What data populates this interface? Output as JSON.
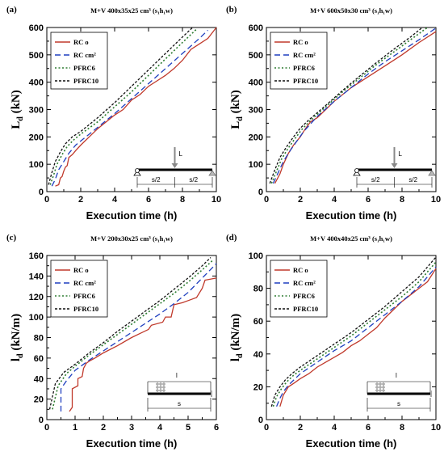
{
  "chart_data": [
    {
      "id": "a",
      "type": "line",
      "panel_label": "(a)",
      "title": "M+V 400x35x25 cm³ (s₁h₁w)",
      "xlabel": "Execution time (h)",
      "ylabel_main": "L",
      "ylabel_sub": "d",
      "ylabel_unit": " (kN)",
      "xlim": [
        0,
        10
      ],
      "ylim": [
        0,
        600
      ],
      "xticks": [
        0,
        2,
        4,
        6,
        8,
        10
      ],
      "yticks": [
        0,
        100,
        200,
        300,
        400,
        500,
        600
      ],
      "legend_position": "top-left",
      "schematic": {
        "load": "L",
        "left_span": "s/2",
        "right_span": "s/2"
      },
      "series": [
        {
          "name": "RC o",
          "color": "#c0392b",
          "dash": "solid",
          "x": [
            0.5,
            0.7,
            0.8,
            0.9,
            1.0,
            1.1,
            1.2,
            1.3,
            1.5,
            1.7,
            2.0,
            2.5,
            3.0,
            3.5,
            4.0,
            4.5,
            5.0,
            5.5,
            6.0,
            6.5,
            7.0,
            7.5,
            8.0,
            8.5,
            9.0,
            9.5,
            10.0
          ],
          "y": [
            20,
            25,
            50,
            55,
            75,
            90,
            95,
            125,
            135,
            150,
            170,
            200,
            230,
            255,
            280,
            300,
            335,
            355,
            385,
            405,
            425,
            450,
            480,
            520,
            540,
            560,
            600
          ]
        },
        {
          "name": "RC cm²",
          "color": "#1f3fbf",
          "dash": "dash",
          "x": [
            0.3,
            0.5,
            0.7,
            1.0,
            1.3,
            1.7,
            2.2,
            3.0,
            4.0,
            5.0,
            6.0,
            7.0,
            8.0,
            9.0,
            9.5
          ],
          "y": [
            20,
            45,
            80,
            110,
            140,
            170,
            195,
            235,
            285,
            340,
            395,
            450,
            505,
            560,
            590
          ]
        },
        {
          "name": "PFRC6",
          "color": "#2e7d32",
          "dash": "dot",
          "x": [
            0.2,
            0.4,
            0.6,
            0.9,
            1.2,
            1.6,
            2.0,
            3.0,
            4.0,
            5.0,
            6.0,
            7.0,
            8.0,
            8.8
          ],
          "y": [
            25,
            60,
            100,
            135,
            165,
            190,
            210,
            255,
            310,
            365,
            425,
            485,
            545,
            592
          ]
        },
        {
          "name": "PFRC10",
          "color": "#111111",
          "dash": "dash-fine",
          "x": [
            0.1,
            0.3,
            0.5,
            0.8,
            1.1,
            1.5,
            2.0,
            3.0,
            4.0,
            5.0,
            6.0,
            7.0,
            8.0,
            8.6
          ],
          "y": [
            25,
            70,
            110,
            145,
            175,
            200,
            220,
            270,
            325,
            385,
            445,
            505,
            565,
            600
          ]
        }
      ]
    },
    {
      "id": "b",
      "type": "line",
      "panel_label": "(b)",
      "title": "M+V 600x50x30 cm³ (s₁h₁w)",
      "xlabel": "Execution time (h)",
      "ylabel_main": "L",
      "ylabel_sub": "d",
      "ylabel_unit": " (kN)",
      "xlim": [
        0,
        10
      ],
      "ylim": [
        0,
        600
      ],
      "xticks": [
        0,
        2,
        4,
        6,
        8,
        10
      ],
      "yticks": [
        0,
        100,
        200,
        300,
        400,
        500,
        600
      ],
      "legend_position": "top-left",
      "schematic": {
        "load": "L",
        "left_span": "s/2",
        "right_span": "s/2"
      },
      "series": [
        {
          "name": "RC o",
          "color": "#c0392b",
          "dash": "solid",
          "x": [
            0.5,
            0.8,
            1.0,
            1.3,
            1.6,
            2.0,
            2.3,
            2.6,
            3.0,
            3.5,
            4.0,
            5.0,
            6.0,
            7.0,
            8.0,
            9.0,
            10.0
          ],
          "y": [
            30,
            65,
            100,
            140,
            170,
            200,
            230,
            255,
            270,
            300,
            330,
            380,
            420,
            460,
            500,
            545,
            585
          ]
        },
        {
          "name": "RC cm²",
          "color": "#1f3fbf",
          "dash": "dash",
          "x": [
            0.4,
            0.7,
            1.0,
            1.4,
            1.8,
            2.2,
            3.0,
            4.0,
            5.0,
            6.0,
            7.0,
            8.0,
            9.0,
            10.0
          ],
          "y": [
            30,
            70,
            110,
            150,
            185,
            220,
            275,
            330,
            380,
            430,
            475,
            515,
            555,
            598
          ]
        },
        {
          "name": "PFRC6",
          "color": "#2e7d32",
          "dash": "dot",
          "x": [
            0.3,
            0.6,
            0.9,
            1.3,
            1.7,
            2.1,
            2.6,
            3.5,
            4.5,
            5.5,
            6.5,
            7.5,
            8.5,
            9.5
          ],
          "y": [
            30,
            75,
            120,
            160,
            195,
            228,
            260,
            310,
            365,
            415,
            465,
            510,
            555,
            600
          ]
        },
        {
          "name": "PFRC10",
          "color": "#111111",
          "dash": "dash-fine",
          "x": [
            0.2,
            0.5,
            0.8,
            1.2,
            1.6,
            2.0,
            2.5,
            3.5,
            4.5,
            5.5,
            6.5,
            7.5,
            8.5,
            9.2
          ],
          "y": [
            30,
            80,
            125,
            165,
            200,
            232,
            262,
            315,
            370,
            422,
            472,
            520,
            565,
            600
          ]
        }
      ]
    },
    {
      "id": "c",
      "type": "line",
      "panel_label": "(c)",
      "title": "M+V 200x30x25 cm³ (s₁h₁w)",
      "xlabel": "Execution time (h)",
      "ylabel_main": "l",
      "ylabel_sub": "d",
      "ylabel_unit": " (kN/m)",
      "xlim": [
        0,
        6
      ],
      "ylim": [
        0,
        160
      ],
      "xticks": [
        0,
        1,
        2,
        3,
        4,
        5,
        6
      ],
      "yticks": [
        0,
        20,
        40,
        60,
        80,
        100,
        120,
        140,
        160
      ],
      "legend_position": "top-left",
      "schematic": {
        "load": "l",
        "span": "s"
      },
      "series": [
        {
          "name": "RC o",
          "color": "#c0392b",
          "dash": "solid",
          "x": [
            0.8,
            0.9,
            0.9,
            1.1,
            1.1,
            1.25,
            1.3,
            1.4,
            1.5,
            1.7,
            2.0,
            2.5,
            3.0,
            3.3,
            3.6,
            3.7,
            4.1,
            4.2,
            4.4,
            4.5,
            4.8,
            5.0,
            5.3,
            5.5,
            5.6,
            6.0
          ],
          "y": [
            8,
            12,
            30,
            33,
            40,
            42,
            50,
            55,
            57,
            60,
            65,
            72,
            80,
            84,
            88,
            92,
            95,
            100,
            100,
            112,
            114,
            116,
            119,
            128,
            136,
            138
          ]
        },
        {
          "name": "RC cm²",
          "color": "#1f3fbf",
          "dash": "dash",
          "x": [
            0.5,
            0.5,
            0.7,
            1.0,
            1.5,
            2.0,
            2.5,
            3.0,
            3.5,
            4.0,
            4.5,
            5.0,
            5.5,
            6.0
          ],
          "y": [
            8,
            30,
            38,
            48,
            58,
            67,
            76,
            85,
            94,
            103,
            113,
            124,
            138,
            152
          ]
        },
        {
          "name": "PFRC6",
          "color": "#2e7d32",
          "dash": "dot",
          "x": [
            0.2,
            0.4,
            0.7,
            1.0,
            1.5,
            2.0,
            2.5,
            3.0,
            3.5,
            4.0,
            4.5,
            5.0,
            5.5,
            5.9
          ],
          "y": [
            10,
            33,
            45,
            52,
            63,
            73,
            83,
            93,
            103,
            113,
            123,
            134,
            146,
            156
          ]
        },
        {
          "name": "PFRC10",
          "color": "#111111",
          "dash": "dash-fine",
          "x": [
            0.1,
            0.3,
            0.6,
            1.0,
            1.5,
            2.0,
            2.5,
            3.0,
            3.5,
            4.0,
            4.5,
            5.0,
            5.5,
            5.8
          ],
          "y": [
            10,
            35,
            46,
            54,
            65,
            75,
            86,
            96,
            106,
            116,
            127,
            138,
            150,
            158
          ]
        }
      ]
    },
    {
      "id": "d",
      "type": "line",
      "panel_label": "(d)",
      "title": "M+V 400x40x25 cm³ (s₁h₁w)",
      "xlabel": "Execution time (h)",
      "ylabel_main": "l",
      "ylabel_sub": "d",
      "ylabel_unit": " (kN/m)",
      "xlim": [
        0,
        10
      ],
      "ylim": [
        0,
        100
      ],
      "xticks": [
        0,
        2,
        4,
        6,
        8,
        10
      ],
      "yticks": [
        0,
        20,
        40,
        60,
        80,
        100
      ],
      "legend_position": "top-left",
      "schematic": {
        "load": "l",
        "span": "s"
      },
      "series": [
        {
          "name": "RC o",
          "color": "#c0392b",
          "dash": "solid",
          "x": [
            0.8,
            1.0,
            1.3,
            1.6,
            2.0,
            2.5,
            3.0,
            3.5,
            4.0,
            4.5,
            5.0,
            5.5,
            6.0,
            6.5,
            7.0,
            7.5,
            8.0,
            8.5,
            9.0,
            9.5,
            10.0
          ],
          "y": [
            8,
            15,
            20,
            22,
            25,
            28,
            32,
            35,
            38,
            41,
            45,
            48,
            52,
            56,
            62,
            67,
            72,
            76,
            80,
            84,
            92
          ]
        },
        {
          "name": "RC cm²",
          "color": "#1f3fbf",
          "dash": "dash",
          "x": [
            0.6,
            0.8,
            1.0,
            1.3,
            1.7,
            2.0,
            3.0,
            4.0,
            5.0,
            6.0,
            7.0,
            8.0,
            9.0,
            10.0
          ],
          "y": [
            8,
            13,
            17,
            21,
            25,
            28,
            35,
            42,
            48,
            56,
            64,
            72,
            81,
            93
          ]
        },
        {
          "name": "PFRC6",
          "color": "#2e7d32",
          "dash": "dot",
          "x": [
            0.4,
            0.6,
            0.9,
            1.2,
            1.6,
            2.0,
            3.0,
            4.0,
            5.0,
            6.0,
            7.0,
            8.0,
            9.0,
            10.0
          ],
          "y": [
            8,
            14,
            19,
            23,
            27,
            30,
            37,
            44,
            51,
            59,
            67,
            75,
            84,
            96
          ]
        },
        {
          "name": "PFRC10",
          "color": "#111111",
          "dash": "dash-fine",
          "x": [
            0.3,
            0.5,
            0.8,
            1.1,
            1.5,
            2.0,
            3.0,
            4.0,
            5.0,
            6.0,
            7.0,
            8.0,
            9.0,
            10.0
          ],
          "y": [
            8,
            15,
            20,
            24,
            28,
            32,
            39,
            46,
            53,
            61,
            69,
            78,
            87,
            99
          ]
        }
      ]
    }
  ]
}
